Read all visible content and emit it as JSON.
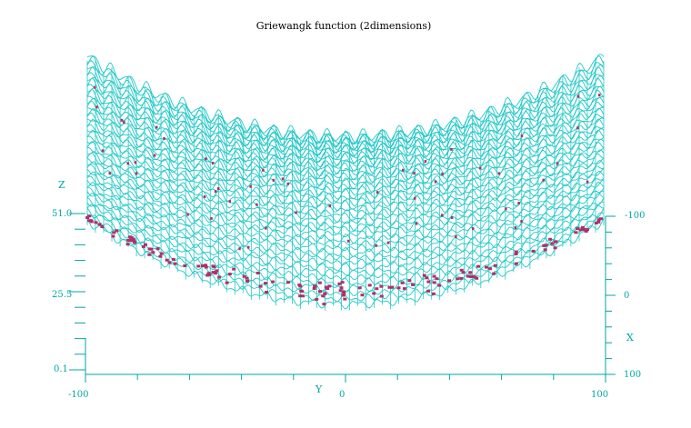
{
  "chart_data": {
    "type": "surface",
    "title": "Griewangk function (2dimensions)",
    "axes": {
      "x": {
        "label": "X",
        "range": [
          -100,
          100
        ],
        "ticks": [
          "-100",
          "0",
          "100"
        ]
      },
      "y": {
        "label": "Y",
        "range": [
          -100,
          100
        ],
        "ticks": [
          "-100",
          "0",
          "100"
        ]
      },
      "z": {
        "label": "Z",
        "range": [
          0.1,
          51.0
        ],
        "ticks": [
          "51.0",
          "25.5",
          "0.1"
        ]
      }
    },
    "function": "Griewangk",
    "dimensions": 2,
    "colors": {
      "mesh": "#22c8c8",
      "axes": "#00a6a6",
      "markers": "#b0306a",
      "title": "#000000"
    }
  }
}
